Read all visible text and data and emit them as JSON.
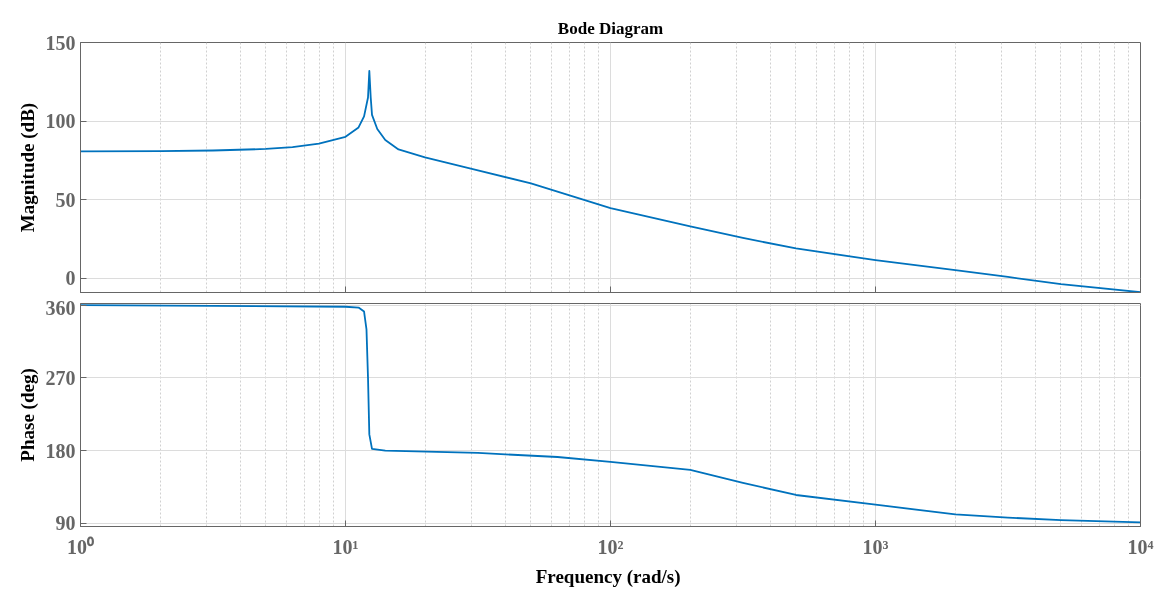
{
  "chart_data": [
    {
      "type": "line",
      "title": "Bode Diagram",
      "ylabel": "Magnitude (dB)",
      "log": "x",
      "grid": true,
      "tick_labels": "y",
      "xlim": [
        1,
        10000
      ],
      "xticks": [
        {
          "value": 1,
          "label": null
        },
        {
          "value": 10,
          "label": null
        },
        {
          "value": 100,
          "label": null
        },
        {
          "value": 1000,
          "label": null
        },
        {
          "value": 10000,
          "label": null
        }
      ],
      "ylim": [
        -9,
        150
      ],
      "yticks": [
        0,
        50,
        100,
        150
      ],
      "series": [
        {
          "color": "#0072bd",
          "x": [
            1,
            2,
            3.16,
            5.01,
            6.31,
            7.94,
            10,
            11.2,
            11.75,
            12.16,
            12.3,
            12.45,
            12.59,
            13.18,
            14.13,
            15.85,
            19.95,
            31.6,
            50.1,
            100,
            200,
            316,
            501,
            1000,
            2000,
            3160,
            5010,
            10000
          ],
          "values": [
            80.8,
            80.9,
            81.3,
            82.3,
            83.5,
            85.7,
            90,
            96,
            103,
            115,
            132,
            115,
            104,
            95,
            88,
            82,
            77,
            68.7,
            60.4,
            44.6,
            33,
            25.7,
            19,
            11.6,
            5.2,
            0.9,
            -3.7,
            -8.8
          ]
        }
      ]
    },
    {
      "type": "line",
      "xlabel": "Frequency  (rad/s)",
      "ylabel": "Phase (deg)",
      "log": "x",
      "grid": true,
      "xlim": [
        1,
        10000
      ],
      "xticks": [
        {
          "value": 1,
          "label": "10⁰"
        },
        {
          "value": 10,
          "label": "10¹"
        },
        {
          "value": 100,
          "label": "10²"
        },
        {
          "value": 1000,
          "label": "10³"
        },
        {
          "value": 10000,
          "label": "10⁴"
        }
      ],
      "ylim": [
        86,
        362
      ],
      "yticks": [
        90,
        180,
        270,
        360
      ],
      "series": [
        {
          "color": "#0072bd",
          "x": [
            1,
            3.16,
            10,
            11.2,
            11.75,
            12.0,
            12.16,
            12.3,
            12.59,
            14.13,
            31.6,
            63.1,
            100,
            200,
            316,
            501,
            1000,
            2000,
            3160,
            5010,
            10000
          ],
          "values": [
            360,
            359,
            358,
            357,
            352,
            330,
            270,
            200,
            182,
            180,
            177,
            172,
            166,
            156,
            140,
            125,
            113,
            101,
            97,
            94,
            91
          ]
        }
      ]
    }
  ]
}
